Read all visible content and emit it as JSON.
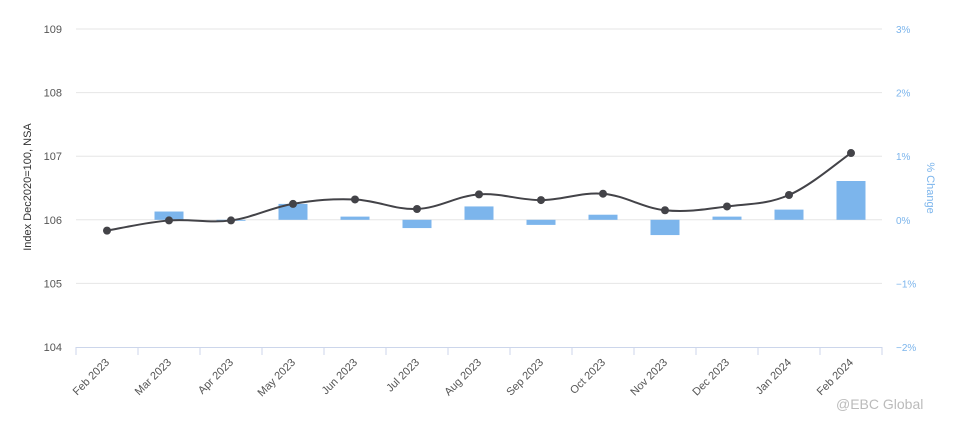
{
  "chart_data": {
    "type": "bar+line",
    "title": "",
    "categories": [
      "Feb 2023",
      "Mar 2023",
      "Apr 2023",
      "May 2023",
      "Jun 2023",
      "Jul 2023",
      "Aug 2023",
      "Sep 2023",
      "Oct 2023",
      "Nov 2023",
      "Dec 2023",
      "Jan 2024",
      "Feb 2024"
    ],
    "series": [
      {
        "name": "Index",
        "kind": "line",
        "axis": "left",
        "color": "#434348",
        "values": [
          105.83,
          105.99,
          105.99,
          106.25,
          106.32,
          106.17,
          106.4,
          106.31,
          106.41,
          106.15,
          106.21,
          106.39,
          107.05
        ]
      },
      {
        "name": "% Change",
        "kind": "bar",
        "axis": "right",
        "color": "#7cb5ec",
        "values": [
          null,
          0.13,
          0.0,
          0.25,
          0.05,
          -0.13,
          0.21,
          -0.08,
          0.08,
          -0.24,
          0.05,
          0.16,
          0.61
        ]
      }
    ],
    "ylabel": "Index Dec2020=100, NSA",
    "ylim": [
      104,
      109
    ],
    "yticks": [
      "104",
      "105",
      "106",
      "107",
      "108",
      "109"
    ],
    "y2label": "% Change",
    "y2lim": [
      -2,
      3
    ],
    "y2ticks": [
      "−2%",
      "−1%",
      "0%",
      "1%",
      "2%",
      "3%"
    ],
    "grid": true,
    "legend": "none"
  },
  "watermark": "@EBC Global"
}
